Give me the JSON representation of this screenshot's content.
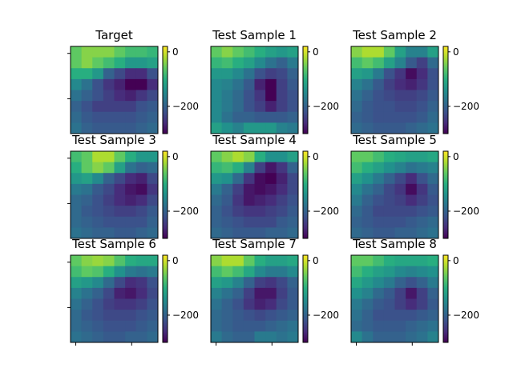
{
  "chart_data": {
    "type": "heatmap",
    "colormap": "viridis",
    "value_range": [
      -300,
      20
    ],
    "grid_size": [
      8,
      8
    ],
    "colorbar_ticks": [
      {
        "value": 0,
        "label": "0"
      },
      {
        "value": -200,
        "label": "−200"
      }
    ],
    "panels": [
      {
        "title": "Target",
        "values": [
          [
            -60,
            -40,
            -40,
            -40,
            -60,
            -80,
            -80,
            -90
          ],
          [
            -60,
            -40,
            -60,
            -80,
            -100,
            -130,
            -130,
            -120
          ],
          [
            -100,
            -100,
            -130,
            -200,
            -230,
            -260,
            -260,
            -220
          ],
          [
            -150,
            -180,
            -220,
            -250,
            -270,
            -300,
            -300,
            -260
          ],
          [
            -180,
            -200,
            -220,
            -240,
            -260,
            -270,
            -250,
            -230
          ],
          [
            -200,
            -220,
            -240,
            -240,
            -240,
            -240,
            -220,
            -210
          ],
          [
            -190,
            -210,
            -220,
            -220,
            -220,
            -220,
            -210,
            -200
          ],
          [
            -180,
            -200,
            -210,
            -210,
            -210,
            -210,
            -200,
            -190
          ]
        ]
      },
      {
        "title": "Test Sample 1",
        "values": [
          [
            -60,
            -40,
            -60,
            -80,
            -100,
            -120,
            -130,
            -120
          ],
          [
            -90,
            -80,
            -100,
            -120,
            -150,
            -180,
            -200,
            -170
          ],
          [
            -130,
            -130,
            -150,
            -180,
            -220,
            -240,
            -230,
            -200
          ],
          [
            -150,
            -160,
            -180,
            -210,
            -270,
            -300,
            -240,
            -210
          ],
          [
            -150,
            -170,
            -190,
            -220,
            -250,
            -300,
            -240,
            -220
          ],
          [
            -150,
            -170,
            -190,
            -220,
            -240,
            -270,
            -240,
            -220
          ],
          [
            -150,
            -180,
            -200,
            -200,
            -210,
            -210,
            -210,
            -200
          ],
          [
            -120,
            -140,
            -160,
            -130,
            -130,
            -130,
            -160,
            -170
          ]
        ]
      },
      {
        "title": "Test Sample 2",
        "values": [
          [
            -40,
            -20,
            -20,
            -60,
            -120,
            -160,
            -160,
            -120
          ],
          [
            -80,
            -60,
            -80,
            -120,
            -160,
            -210,
            -240,
            -190
          ],
          [
            -120,
            -130,
            -170,
            -220,
            -250,
            -290,
            -260,
            -220
          ],
          [
            -160,
            -180,
            -210,
            -240,
            -260,
            -270,
            -250,
            -220
          ],
          [
            -180,
            -200,
            -220,
            -230,
            -240,
            -240,
            -230,
            -210
          ],
          [
            -190,
            -210,
            -220,
            -220,
            -230,
            -230,
            -220,
            -200
          ],
          [
            -200,
            -210,
            -220,
            -220,
            -220,
            -220,
            -210,
            -190
          ],
          [
            -190,
            -200,
            -210,
            -210,
            -210,
            -200,
            -190,
            -180
          ]
        ]
      },
      {
        "title": "Test Sample 3",
        "values": [
          [
            -80,
            -60,
            -20,
            -20,
            -60,
            -100,
            -130,
            -130
          ],
          [
            -100,
            -60,
            -40,
            -60,
            -120,
            -180,
            -200,
            -190
          ],
          [
            -130,
            -120,
            -150,
            -200,
            -230,
            -260,
            -270,
            -230
          ],
          [
            -170,
            -180,
            -210,
            -230,
            -260,
            -280,
            -290,
            -250
          ],
          [
            -190,
            -200,
            -220,
            -240,
            -260,
            -270,
            -260,
            -230
          ],
          [
            -190,
            -210,
            -220,
            -230,
            -240,
            -240,
            -230,
            -210
          ],
          [
            -190,
            -200,
            -210,
            -220,
            -220,
            -220,
            -220,
            -200
          ],
          [
            -180,
            -190,
            -200,
            -200,
            -210,
            -210,
            -200,
            -190
          ]
        ]
      },
      {
        "title": "Test Sample 4",
        "values": [
          [
            -60,
            -40,
            -20,
            -40,
            -100,
            -140,
            -140,
            -120
          ],
          [
            -90,
            -80,
            -100,
            -160,
            -240,
            -280,
            -250,
            -200
          ],
          [
            -130,
            -140,
            -190,
            -250,
            -290,
            -300,
            -270,
            -230
          ],
          [
            -170,
            -200,
            -240,
            -280,
            -290,
            -280,
            -260,
            -230
          ],
          [
            -190,
            -210,
            -250,
            -280,
            -270,
            -260,
            -240,
            -220
          ],
          [
            -200,
            -220,
            -240,
            -250,
            -250,
            -240,
            -230,
            -210
          ],
          [
            -200,
            -210,
            -220,
            -230,
            -230,
            -230,
            -210,
            -200
          ],
          [
            -190,
            -200,
            -210,
            -210,
            -210,
            -200,
            -200,
            -190
          ]
        ]
      },
      {
        "title": "Test Sample 5",
        "values": [
          [
            -60,
            -60,
            -80,
            -100,
            -110,
            -120,
            -120,
            -110
          ],
          [
            -80,
            -100,
            -120,
            -140,
            -160,
            -180,
            -170,
            -160
          ],
          [
            -120,
            -140,
            -170,
            -200,
            -230,
            -260,
            -220,
            -190
          ],
          [
            -150,
            -180,
            -200,
            -230,
            -250,
            -290,
            -250,
            -210
          ],
          [
            -170,
            -200,
            -220,
            -230,
            -240,
            -260,
            -240,
            -220
          ],
          [
            -190,
            -210,
            -230,
            -230,
            -230,
            -230,
            -220,
            -210
          ],
          [
            -200,
            -210,
            -220,
            -220,
            -220,
            -210,
            -200,
            -190
          ],
          [
            -190,
            -200,
            -210,
            -210,
            -200,
            -200,
            -190,
            -180
          ]
        ]
      },
      {
        "title": "Test Sample 6",
        "values": [
          [
            -60,
            -40,
            -30,
            -40,
            -70,
            -100,
            -110,
            -110
          ],
          [
            -80,
            -60,
            -70,
            -100,
            -140,
            -170,
            -180,
            -170
          ],
          [
            -120,
            -130,
            -150,
            -190,
            -230,
            -260,
            -250,
            -220
          ],
          [
            -160,
            -180,
            -200,
            -230,
            -270,
            -280,
            -260,
            -230
          ],
          [
            -180,
            -200,
            -220,
            -240,
            -250,
            -250,
            -240,
            -220
          ],
          [
            -190,
            -210,
            -220,
            -230,
            -230,
            -230,
            -220,
            -210
          ],
          [
            -190,
            -200,
            -210,
            -220,
            -220,
            -220,
            -210,
            -200
          ],
          [
            -180,
            -190,
            -200,
            -210,
            -210,
            -200,
            -200,
            -190
          ]
        ]
      },
      {
        "title": "Test Sample 7",
        "values": [
          [
            -40,
            -20,
            -20,
            -60,
            -100,
            -120,
            -120,
            -110
          ],
          [
            -80,
            -60,
            -80,
            -110,
            -150,
            -170,
            -170,
            -150
          ],
          [
            -120,
            -130,
            -160,
            -200,
            -240,
            -250,
            -230,
            -200
          ],
          [
            -160,
            -180,
            -200,
            -240,
            -280,
            -280,
            -240,
            -210
          ],
          [
            -180,
            -200,
            -220,
            -250,
            -270,
            -260,
            -230,
            -210
          ],
          [
            -190,
            -200,
            -210,
            -220,
            -230,
            -220,
            -210,
            -200
          ],
          [
            -190,
            -200,
            -210,
            -210,
            -210,
            -200,
            -190,
            -180
          ],
          [
            -170,
            -190,
            -200,
            -200,
            -170,
            -170,
            -180,
            -170
          ]
        ]
      },
      {
        "title": "Test Sample 8",
        "values": [
          [
            -60,
            -60,
            -80,
            -100,
            -110,
            -110,
            -110,
            -100
          ],
          [
            -80,
            -100,
            -120,
            -130,
            -150,
            -160,
            -150,
            -140
          ],
          [
            -110,
            -130,
            -150,
            -170,
            -200,
            -220,
            -200,
            -170
          ],
          [
            -140,
            -160,
            -190,
            -210,
            -240,
            -280,
            -240,
            -200
          ],
          [
            -170,
            -190,
            -210,
            -220,
            -240,
            -260,
            -240,
            -210
          ],
          [
            -180,
            -200,
            -220,
            -220,
            -220,
            -220,
            -210,
            -200
          ],
          [
            -190,
            -200,
            -210,
            -210,
            -210,
            -200,
            -190,
            -180
          ],
          [
            -150,
            -180,
            -200,
            -200,
            -200,
            -190,
            -180,
            -160
          ]
        ]
      }
    ]
  }
}
